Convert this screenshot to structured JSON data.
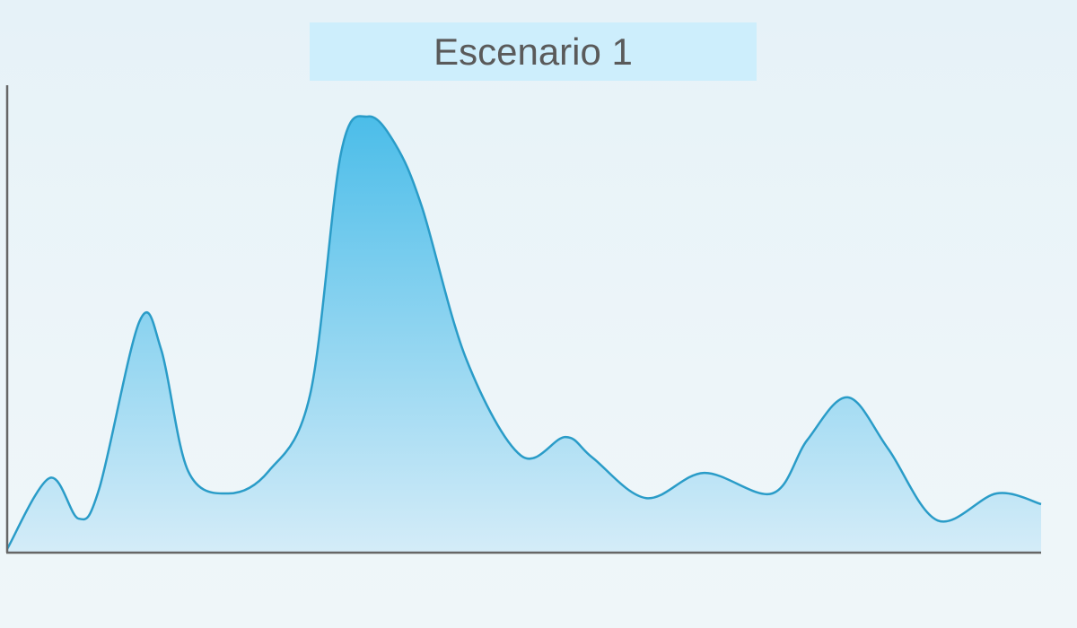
{
  "chart_data": {
    "type": "area",
    "title": "Escenario 1",
    "xlabel": "",
    "ylabel": "",
    "xlim": [
      0,
      100
    ],
    "ylim": [
      0,
      100
    ],
    "grid": false,
    "x": [
      0,
      4.1,
      6.9,
      8.9,
      12.8,
      14.9,
      17.5,
      21.4,
      25.3,
      29.3,
      32.3,
      34.9,
      37.5,
      40.1,
      44.4,
      49.7,
      54.0,
      56.6,
      61.8,
      67.4,
      74.0,
      77.4,
      81.3,
      85.2,
      90.0,
      95.7,
      100
    ],
    "values": [
      0.6,
      15.8,
      7.1,
      13.5,
      49.4,
      43.3,
      17.3,
      12.5,
      17.3,
      33.7,
      85.6,
      93.3,
      87.5,
      74.0,
      41.3,
      20.6,
      24.6,
      20.2,
      11.5,
      16.9,
      12.5,
      24.0,
      33.1,
      22.1,
      6.7,
      12.5,
      10.2
    ],
    "colors": {
      "line": "#2a9cc8",
      "fill_top": "#4bbde9",
      "fill_bottom": "#d4ecf8",
      "axis": "#666666",
      "title_bg": "#cdeefc"
    }
  }
}
